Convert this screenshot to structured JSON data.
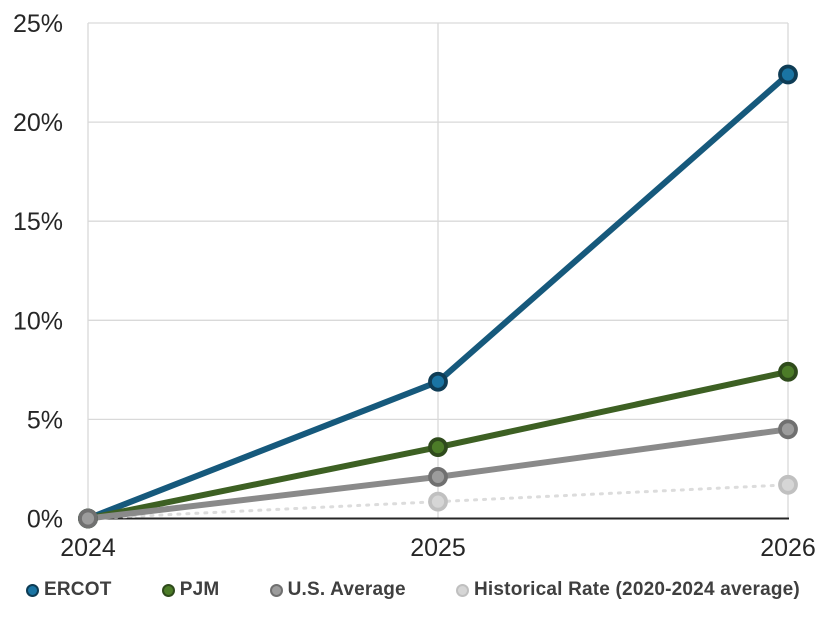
{
  "chart_data": {
    "type": "line",
    "title": "",
    "x": [
      "2024",
      "2025",
      "2026"
    ],
    "xlabel": "",
    "ylabel": "",
    "ylim": [
      0,
      25
    ],
    "ytick_step": 5,
    "ytick_labels": [
      "0%",
      "5%",
      "10%",
      "15%",
      "20%",
      "25%"
    ],
    "grid": true,
    "legend_position": "bottom",
    "series": [
      {
        "name": "ERCOT",
        "values": [
          0,
          6.9,
          22.4
        ],
        "line_color": "#16597C",
        "marker_fill": "#1A74A3",
        "marker_ring": "#0E3C55",
        "dashed": false
      },
      {
        "name": "PJM",
        "values": [
          0,
          3.6,
          7.4
        ],
        "line_color": "#3D6023",
        "marker_fill": "#4C7C28",
        "marker_ring": "#2F4B1C",
        "dashed": false
      },
      {
        "name": "U.S. Average",
        "values": [
          0,
          2.1,
          4.5
        ],
        "line_color": "#8A8A8A",
        "marker_fill": "#9C9C9C",
        "marker_ring": "#707070",
        "dashed": false
      },
      {
        "name": "Historical Rate (2020-2024 average)",
        "values": [
          0,
          0.85,
          1.7
        ],
        "line_color": "#DCDCDC",
        "marker_fill": "#D6D6D6",
        "marker_ring": "#C0C0C0",
        "dashed": true
      }
    ],
    "colors": {
      "gridline": "#D9D9D9",
      "axis_line": "#262626",
      "axis_text": "#262626",
      "legend_text": "#3F3F3F",
      "background": "#FFFFFF"
    }
  }
}
